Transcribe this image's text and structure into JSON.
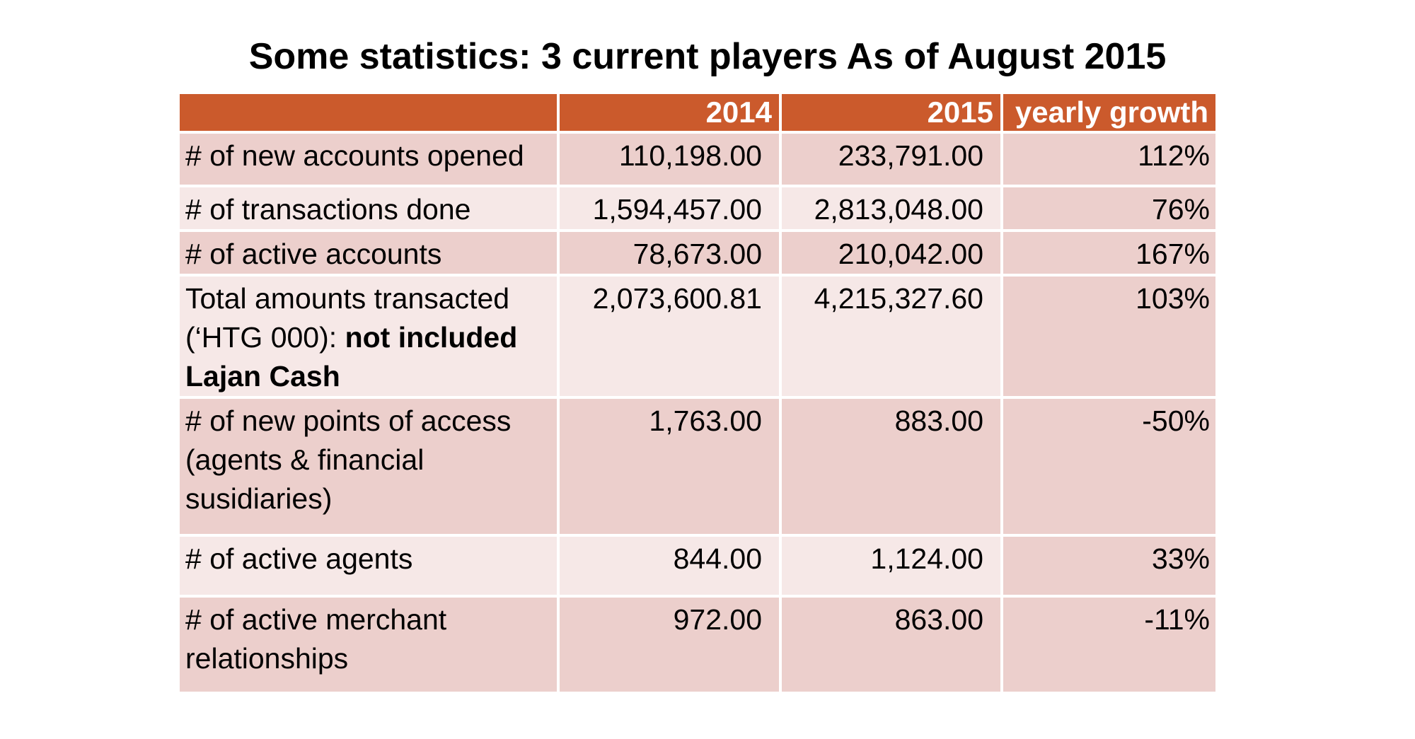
{
  "title": "Some statistics: 3 current players As of August 2015",
  "table": {
    "header": [
      "2014",
      "2015",
      "yearly growth"
    ],
    "rows": [
      [
        "# of new accounts opened",
        "110,198.00",
        "233,791.00",
        "112%"
      ],
      [
        "# of transactions done",
        "1,594,457.00",
        "2,813,048.00",
        "76%"
      ],
      [
        "# of active accounts",
        "78,673.00",
        "210,042.00",
        "167%"
      ],
      [
        {
          "text": "Total amounts transacted (‘HTG 000):",
          "bold": "not included Lajan Cash"
        },
        "2,073,600.81",
        "4,215,327.60",
        "103%"
      ],
      [
        "# of new points of access (agents & financial susidiaries)",
        "1,763.00",
        "883.00",
        "-50%"
      ],
      [
        "# of active agents",
        "844.00",
        "1,124.00",
        "33%"
      ],
      [
        "# of active merchant relationships",
        "972.00",
        "863.00",
        "-11%"
      ]
    ]
  }
}
